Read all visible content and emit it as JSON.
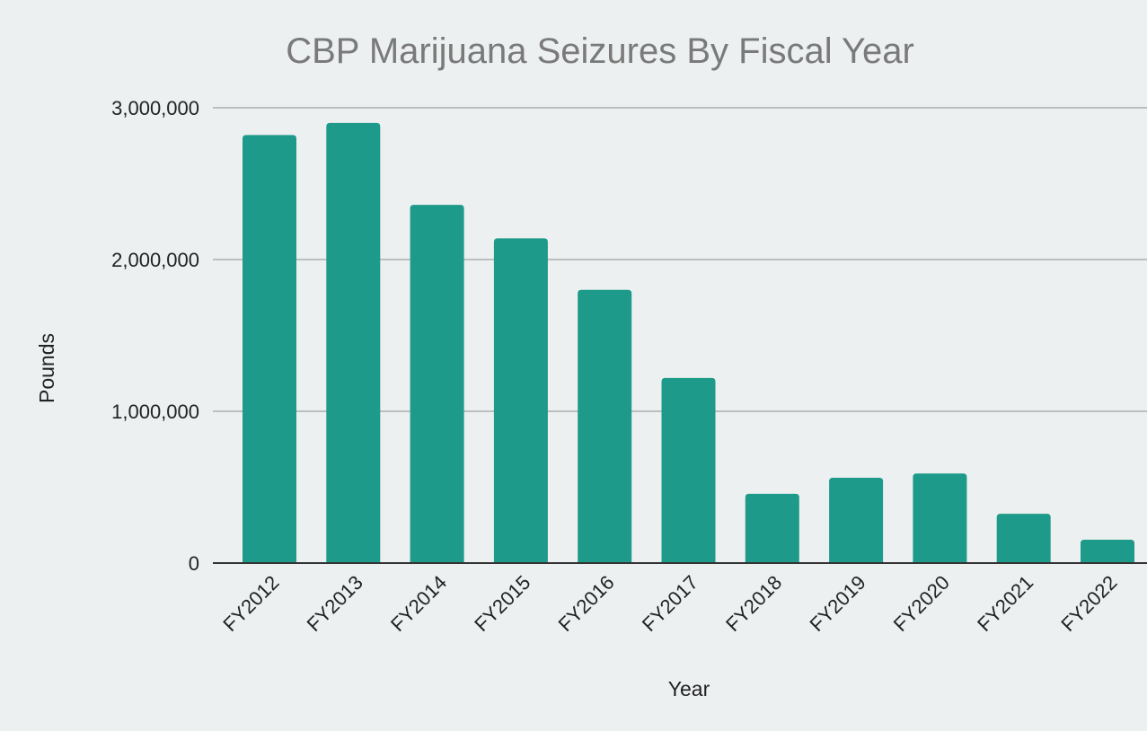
{
  "chart_data": {
    "type": "bar",
    "title": "CBP Marijuana Seizures By Fiscal Year",
    "xlabel": "Year",
    "ylabel": "Pounds",
    "categories": [
      "FY2012",
      "FY2013",
      "FY2014",
      "FY2015",
      "FY2016",
      "FY2017",
      "FY2018",
      "FY2019",
      "FY2020",
      "FY2021",
      "FY2022"
    ],
    "values": [
      2820000,
      2900000,
      2360000,
      2140000,
      1800000,
      1220000,
      456000,
      562000,
      590000,
      325000,
      154000
    ],
    "ylim": [
      0,
      3000000
    ],
    "yticks": [
      0,
      1000000,
      2000000,
      3000000
    ],
    "ytick_labels": [
      "0",
      "1,000,000",
      "2,000,000",
      "3,000,000"
    ],
    "grid": true,
    "legend": "none",
    "bar_color": "#1d9a89"
  }
}
